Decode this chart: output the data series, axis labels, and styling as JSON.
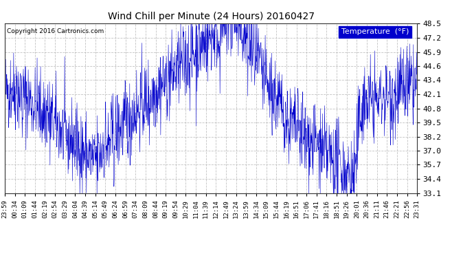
{
  "title": "Wind Chill per Minute (24 Hours) 20160427",
  "copyright": "Copyright 2016 Cartronics.com",
  "legend_label": "Temperature  (°F)",
  "legend_bg": "#0000cc",
  "legend_fg": "#ffffff",
  "line_color": "#0000cc",
  "background_color": "#ffffff",
  "grid_color": "#bbbbbb",
  "ylim": [
    33.1,
    48.5
  ],
  "yticks": [
    33.1,
    34.4,
    35.7,
    37.0,
    38.2,
    39.5,
    40.8,
    42.1,
    43.4,
    44.6,
    45.9,
    47.2,
    48.5
  ],
  "xtick_labels": [
    "23:59",
    "00:34",
    "01:09",
    "01:44",
    "02:19",
    "02:54",
    "03:29",
    "04:04",
    "04:39",
    "05:14",
    "05:49",
    "06:24",
    "06:59",
    "07:34",
    "08:09",
    "08:44",
    "09:19",
    "09:54",
    "10:29",
    "11:04",
    "11:39",
    "12:14",
    "12:49",
    "13:24",
    "13:59",
    "14:34",
    "15:09",
    "15:44",
    "16:19",
    "16:51",
    "17:06",
    "17:41",
    "18:16",
    "18:51",
    "19:26",
    "20:01",
    "20:36",
    "21:11",
    "21:46",
    "22:21",
    "22:56",
    "23:31"
  ],
  "num_points": 1440
}
